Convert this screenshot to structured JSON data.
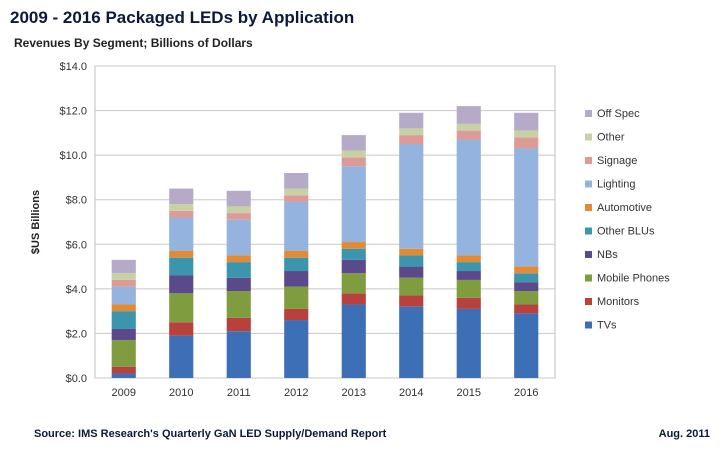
{
  "footer": {
    "source": "Source: IMS Research's Quarterly GaN LED Supply/Demand Report",
    "date": "Aug. 2011"
  },
  "chart_data": {
    "type": "bar",
    "stacked": true,
    "title": "2009 - 2016 Packaged LEDs by Application",
    "subtitle": "Revenues By Segment; Billions of Dollars",
    "xlabel": "",
    "ylabel": "$US Billions",
    "ylim": [
      0,
      14
    ],
    "yticks": [
      "$0.0",
      "$2.0",
      "$4.0",
      "$6.0",
      "$8.0",
      "$10.0",
      "$12.0",
      "$14.0"
    ],
    "grid": true,
    "legend": "right",
    "categories": [
      "2009",
      "2010",
      "2011",
      "2012",
      "2013",
      "2014",
      "2015",
      "2016"
    ],
    "series": [
      {
        "name": "TVs",
        "color": "#3d6fb6",
        "values": [
          0.2,
          1.9,
          2.1,
          2.6,
          3.3,
          3.2,
          3.1,
          2.9
        ]
      },
      {
        "name": "Monitors",
        "color": "#b8413e",
        "values": [
          0.3,
          0.6,
          0.6,
          0.5,
          0.5,
          0.5,
          0.5,
          0.4
        ]
      },
      {
        "name": "Mobile Phones",
        "color": "#7f9d3f",
        "values": [
          1.2,
          1.3,
          1.2,
          1.0,
          0.9,
          0.8,
          0.8,
          0.6
        ]
      },
      {
        "name": "NBs",
        "color": "#5b4a8b",
        "values": [
          0.5,
          0.8,
          0.6,
          0.7,
          0.6,
          0.5,
          0.4,
          0.4
        ]
      },
      {
        "name": "Other BLUs",
        "color": "#3a95ad",
        "values": [
          0.8,
          0.8,
          0.7,
          0.6,
          0.5,
          0.5,
          0.4,
          0.4
        ]
      },
      {
        "name": "Automotive",
        "color": "#e38b34",
        "values": [
          0.3,
          0.3,
          0.3,
          0.3,
          0.3,
          0.3,
          0.3,
          0.3
        ]
      },
      {
        "name": "Lighting",
        "color": "#94b3de",
        "values": [
          0.8,
          1.5,
          1.6,
          2.2,
          3.4,
          4.7,
          5.2,
          5.3
        ]
      },
      {
        "name": "Signage",
        "color": "#dd9b98",
        "values": [
          0.3,
          0.3,
          0.3,
          0.3,
          0.4,
          0.4,
          0.4,
          0.5
        ]
      },
      {
        "name": "Other",
        "color": "#c7d2a4",
        "values": [
          0.3,
          0.3,
          0.3,
          0.3,
          0.3,
          0.3,
          0.3,
          0.3
        ]
      },
      {
        "name": "Off Spec",
        "color": "#b5abc9",
        "values": [
          0.6,
          0.7,
          0.7,
          0.7,
          0.7,
          0.7,
          0.8,
          0.8
        ]
      }
    ]
  }
}
